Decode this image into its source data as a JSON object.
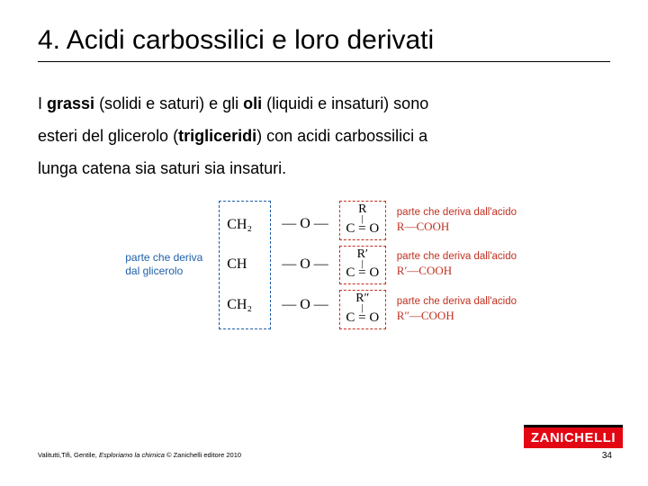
{
  "title": "4. Acidi carbossilici e loro derivati",
  "body": {
    "t1a": "I ",
    "t1b": "grassi",
    "t1c": " (solidi e saturi) e gli ",
    "t1d": "oli",
    "t1e": " (liquidi e insaturi) sono",
    "t2a": "esteri del glicerolo (",
    "t2b": "trigliceridi",
    "t2c": ") con acidi carbossilici a",
    "t3": "lunga catena sia saturi sia insaturi."
  },
  "diagram": {
    "glycerol_label_l1": "parte che deriva",
    "glycerol_label_l2": "dal glicerolo",
    "glycerol_color": "#1e5fa8",
    "acid_color": "#c03020",
    "gly_rows": [
      "CH₂",
      "CH",
      "CH₂"
    ],
    "bond": "— O —",
    "acid_r": [
      "R",
      "R′",
      "R″"
    ],
    "acid_co": "C = O",
    "acid_label_l1": "parte che deriva dall'acido",
    "acid_formulas": [
      "R—COOH",
      "R′—COOH",
      "R″—COOH"
    ]
  },
  "footer": {
    "authors": "Valitutti,Tifi, Gentile, ",
    "book": "Esploriamo la chimica",
    "rest": " © Zanichelli editore 2010"
  },
  "brand": "ZANICHELLI",
  "page_number": "34",
  "colors": {
    "brand_bg": "#e30613",
    "text": "#000000",
    "bg": "#ffffff"
  }
}
